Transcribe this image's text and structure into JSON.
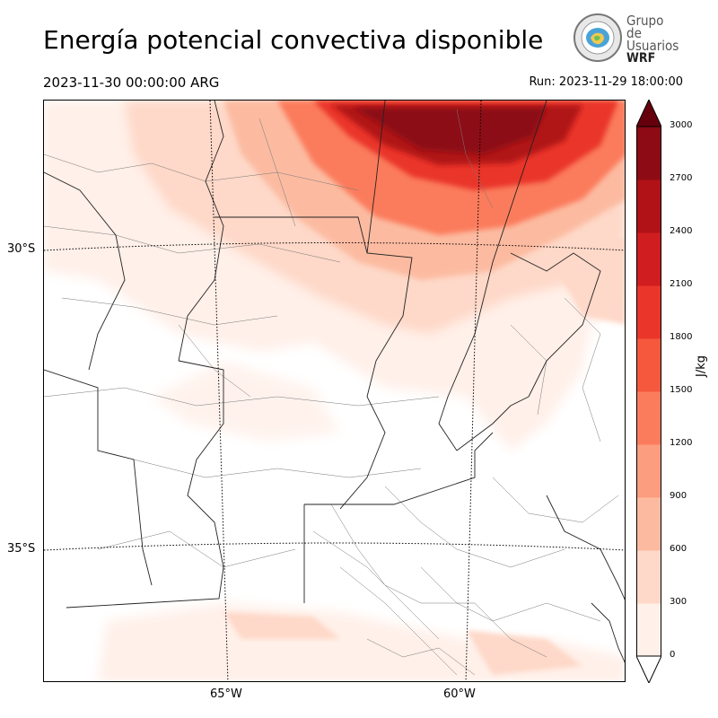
{
  "header": {
    "title": "Energía potencial convectiva disponible",
    "valid_time": "2023-11-30 00:00:00 ARG",
    "run": "Run: 2023-11-29 18:00:00"
  },
  "logo": {
    "line1": "Grupo de",
    "line2": "Usuarios",
    "line3": "WRF"
  },
  "map": {
    "lat_labels": [
      "30°S",
      "35°S"
    ],
    "lon_labels": [
      "65°W",
      "60°W"
    ]
  },
  "colorbar": {
    "unit": "J/kg",
    "ticks": [
      "0",
      "300",
      "600",
      "900",
      "1200",
      "1500",
      "1800",
      "2100",
      "2400",
      "2700",
      "3000"
    ],
    "colors": [
      "#fff0e9",
      "#fed8c8",
      "#fcbba1",
      "#fc9d7f",
      "#fb7c5c",
      "#f6583e",
      "#ea362a",
      "#d01d1f",
      "#b11218",
      "#8d0b14",
      "#67000d"
    ],
    "extend": "both"
  }
}
